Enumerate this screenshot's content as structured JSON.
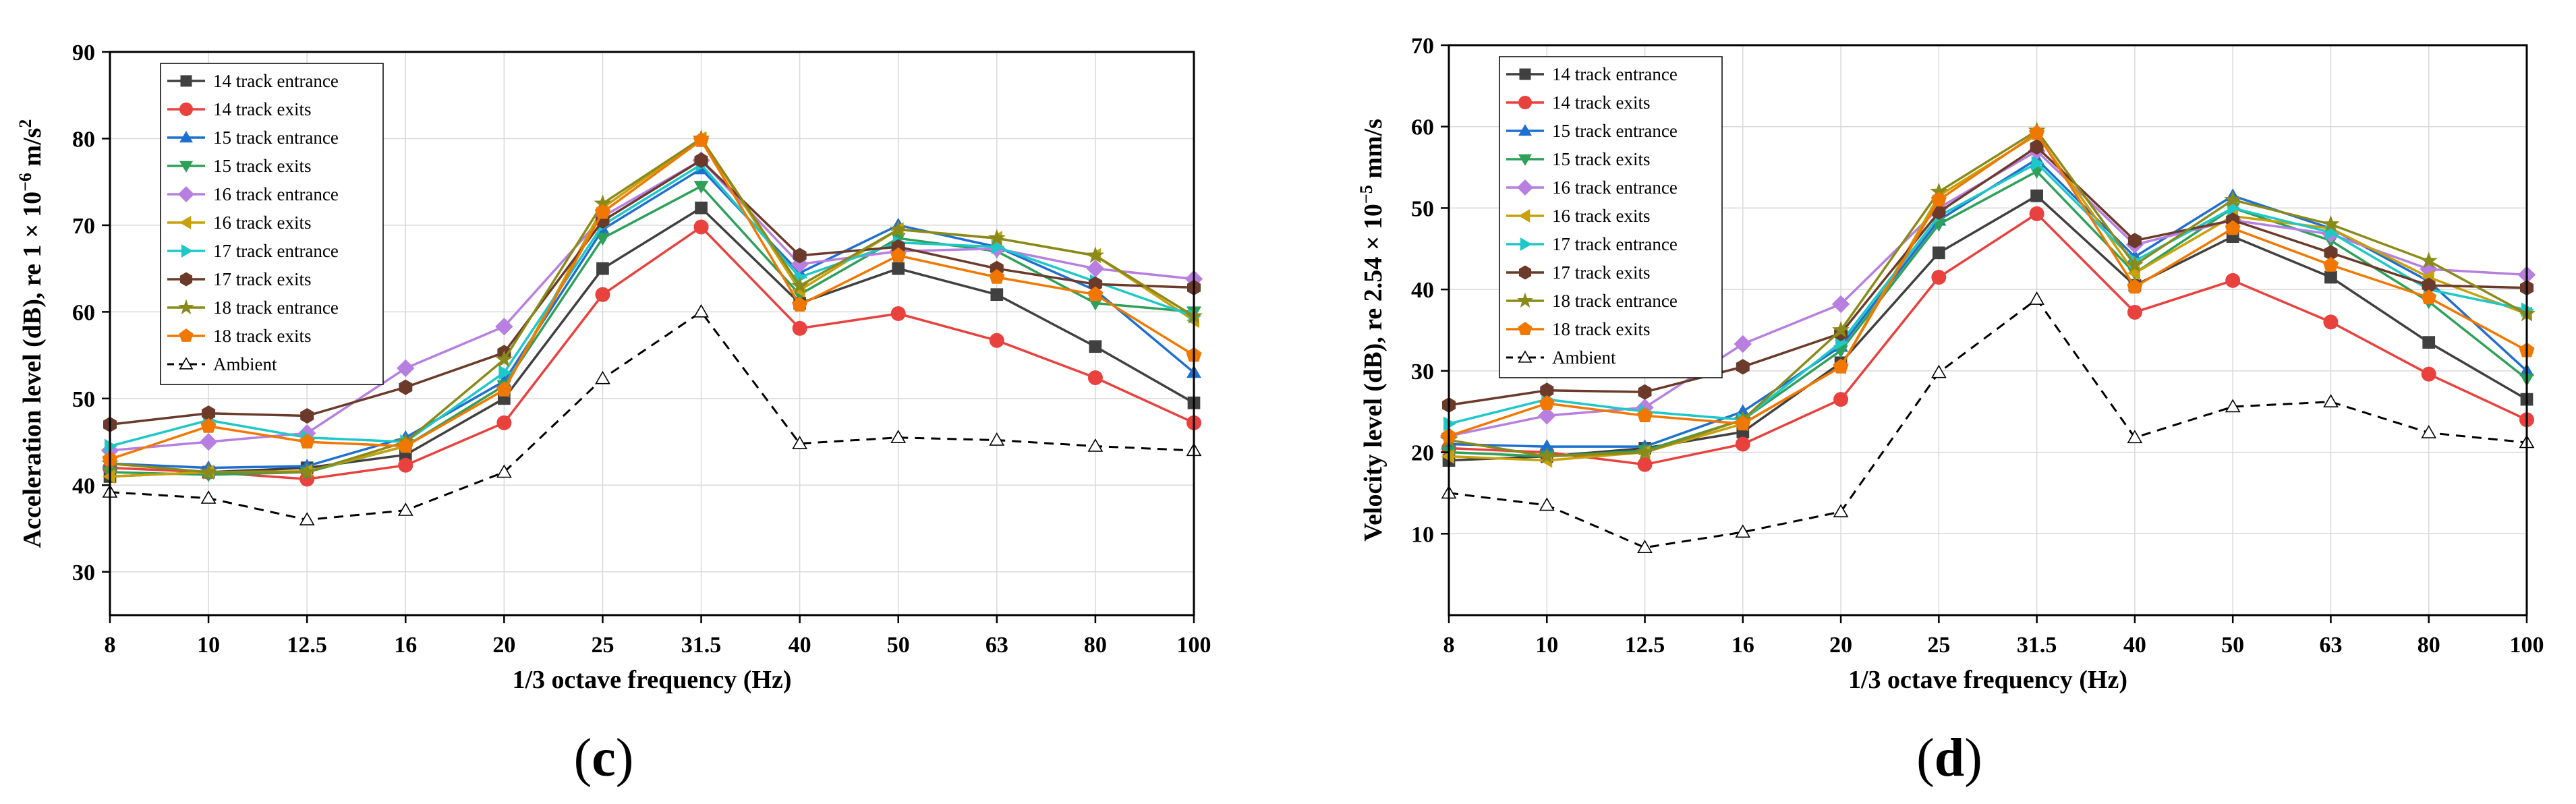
{
  "chart_data": [
    {
      "type": "line",
      "panel_label": "(c)",
      "panel_label_parts": {
        "open": "(",
        "letter": "c",
        "close": ")"
      },
      "xlabel": "1/3 octave frequency (Hz)",
      "ylabel": "Acceleration level (dB), re 1 × 10",
      "ylabel_superscript": "−6",
      "ylabel_unit": " m/s",
      "ylabel_unit_superscript": "2",
      "categories": [
        "8",
        "10",
        "12.5",
        "16",
        "20",
        "25",
        "31.5",
        "40",
        "50",
        "63",
        "80",
        "100"
      ],
      "ylim": [
        25,
        90
      ],
      "yticks": [
        30,
        40,
        50,
        60,
        70,
        80,
        90
      ],
      "grid": true,
      "legend_position": "top-left",
      "series": [
        {
          "name": "14 track entrance",
          "color": "#404040",
          "marker": "square",
          "dash": "solid",
          "values": [
            41,
            41.5,
            42,
            43.5,
            50,
            65,
            72,
            61,
            65,
            62,
            56,
            49.5
          ]
        },
        {
          "name": "14 track exits",
          "color": "#e8413e",
          "marker": "circle",
          "dash": "solid",
          "values": [
            42,
            41.5,
            40.7,
            42.3,
            47.2,
            62,
            69.8,
            58.1,
            59.8,
            56.7,
            52.4,
            47.2
          ]
        },
        {
          "name": "15 track entrance",
          "color": "#1f6fcf",
          "marker": "triangle-up",
          "dash": "solid",
          "values": [
            42.5,
            42,
            42.2,
            45.5,
            52,
            69.5,
            76.5,
            64.5,
            70,
            67.5,
            62.5,
            53
          ]
        },
        {
          "name": "15 track exits",
          "color": "#2ea05a",
          "marker": "triangle-down",
          "dash": "solid",
          "values": [
            41.5,
            41.2,
            41.5,
            44.5,
            51.5,
            68.5,
            74.5,
            62,
            68.5,
            67,
            61,
            60
          ]
        },
        {
          "name": "16 track entrance",
          "color": "#b77fe0",
          "marker": "diamond",
          "dash": "solid",
          "values": [
            44,
            45,
            46,
            53.5,
            58.3,
            71,
            77.5,
            65.5,
            67,
            67.3,
            65,
            63.8
          ]
        },
        {
          "name": "16 track exits",
          "color": "#c8a00a",
          "marker": "triangle-left",
          "dash": "solid",
          "values": [
            41,
            41.5,
            41.6,
            44.5,
            51,
            72,
            80,
            62.5,
            69.5,
            68.5,
            66.5,
            59
          ]
        },
        {
          "name": "17 track entrance",
          "color": "#1ec8c8",
          "marker": "triangle-right",
          "dash": "solid",
          "values": [
            44.5,
            47.5,
            45.5,
            45,
            53,
            70,
            77,
            64,
            68,
            67.5,
            63.5,
            59.5
          ]
        },
        {
          "name": "17 track exits",
          "color": "#6b3a2a",
          "marker": "hexagon",
          "dash": "solid",
          "values": [
            47,
            48.3,
            48,
            51.3,
            55.3,
            70.5,
            77.5,
            66.5,
            67.5,
            65,
            63.2,
            62.8
          ]
        },
        {
          "name": "18 track entrance",
          "color": "#8a8a1a",
          "marker": "star",
          "dash": "solid",
          "values": [
            42.5,
            41.5,
            41.5,
            45,
            54.5,
            72.5,
            80,
            63,
            69.5,
            68.5,
            66.5,
            59.5
          ]
        },
        {
          "name": "18 track exits",
          "color": "#f07800",
          "marker": "pentagon",
          "dash": "solid",
          "values": [
            43,
            46.8,
            45,
            44.5,
            51,
            71.5,
            79.8,
            60.8,
            66.5,
            64,
            62,
            55
          ]
        },
        {
          "name": "Ambient",
          "color": "#000000",
          "marker": "triangle-open",
          "dash": "dashed",
          "values": [
            39.2,
            38.5,
            36,
            37.1,
            41.5,
            52.3,
            60,
            44.8,
            45.5,
            45.2,
            44.5,
            44
          ]
        }
      ]
    },
    {
      "type": "line",
      "panel_label": "(d)",
      "panel_label_parts": {
        "open": "(",
        "letter": "d",
        "close": ")"
      },
      "xlabel": "1/3 octave frequency (Hz)",
      "ylabel": "Velocity level (dB), re 2.54 × 10",
      "ylabel_superscript": "−5",
      "ylabel_unit": " mm/s",
      "ylabel_unit_superscript": "",
      "categories": [
        "8",
        "10",
        "12.5",
        "16",
        "20",
        "25",
        "31.5",
        "40",
        "50",
        "63",
        "80",
        "100"
      ],
      "ylim": [
        0,
        70
      ],
      "yticks": [
        10,
        20,
        30,
        40,
        50,
        60,
        70
      ],
      "grid": true,
      "legend_position": "top-left",
      "series": [
        {
          "name": "14 track entrance",
          "color": "#404040",
          "marker": "square",
          "dash": "solid",
          "values": [
            19,
            19.5,
            20.5,
            22.5,
            31,
            44.5,
            51.5,
            40.5,
            46.5,
            41.5,
            33.5,
            26.5
          ]
        },
        {
          "name": "14 track exits",
          "color": "#e8413e",
          "marker": "circle",
          "dash": "solid",
          "values": [
            20.5,
            20,
            18.5,
            21,
            26.5,
            41.5,
            49.3,
            37.2,
            41.1,
            36,
            29.6,
            24
          ]
        },
        {
          "name": "15 track entrance",
          "color": "#1f6fcf",
          "marker": "triangle-up",
          "dash": "solid",
          "values": [
            21,
            20.7,
            20.7,
            25,
            33,
            48.5,
            56,
            44,
            51.5,
            47.5,
            41,
            30
          ]
        },
        {
          "name": "15 track exits",
          "color": "#2ea05a",
          "marker": "triangle-down",
          "dash": "solid",
          "values": [
            20,
            19.5,
            20.2,
            24,
            32.5,
            48,
            54.5,
            42,
            50,
            46,
            38.5,
            29
          ]
        },
        {
          "name": "16 track entrance",
          "color": "#b77fe0",
          "marker": "diamond",
          "dash": "solid",
          "values": [
            22,
            24.5,
            25.5,
            33.3,
            38.2,
            50,
            57,
            45.5,
            48.5,
            46.8,
            42.5,
            41.8
          ]
        },
        {
          "name": "16 track exits",
          "color": "#c8a00a",
          "marker": "triangle-left",
          "dash": "solid",
          "values": [
            19.5,
            19,
            20,
            23.5,
            30.5,
            51.5,
            59,
            42,
            49,
            47.5,
            41.5,
            37
          ]
        },
        {
          "name": "17 track entrance",
          "color": "#1ec8c8",
          "marker": "triangle-right",
          "dash": "solid",
          "values": [
            23.5,
            26.5,
            25,
            24,
            33.5,
            49,
            55.5,
            43.5,
            50,
            47,
            40,
            37.5
          ]
        },
        {
          "name": "17 track exits",
          "color": "#6b3a2a",
          "marker": "hexagon",
          "dash": "solid",
          "values": [
            25.8,
            27.6,
            27.4,
            30.5,
            34.6,
            49.5,
            57.5,
            46,
            48.5,
            44.5,
            40.5,
            40.2
          ]
        },
        {
          "name": "18 track entrance",
          "color": "#8a8a1a",
          "marker": "star",
          "dash": "solid",
          "values": [
            21.5,
            19.5,
            20,
            24,
            35,
            52,
            59.5,
            43,
            51,
            48,
            43.5,
            37
          ]
        },
        {
          "name": "18 track exits",
          "color": "#f07800",
          "marker": "pentagon",
          "dash": "solid",
          "values": [
            22,
            26,
            24.5,
            23.5,
            30.5,
            51,
            59.2,
            40.3,
            47.5,
            43,
            39,
            32.5
          ]
        },
        {
          "name": "Ambient",
          "color": "#000000",
          "marker": "triangle-open",
          "dash": "dashed",
          "values": [
            15,
            13.5,
            8.3,
            10.2,
            12.7,
            29.8,
            38.8,
            21.8,
            25.6,
            26.2,
            22.4,
            21.2
          ]
        }
      ]
    }
  ]
}
